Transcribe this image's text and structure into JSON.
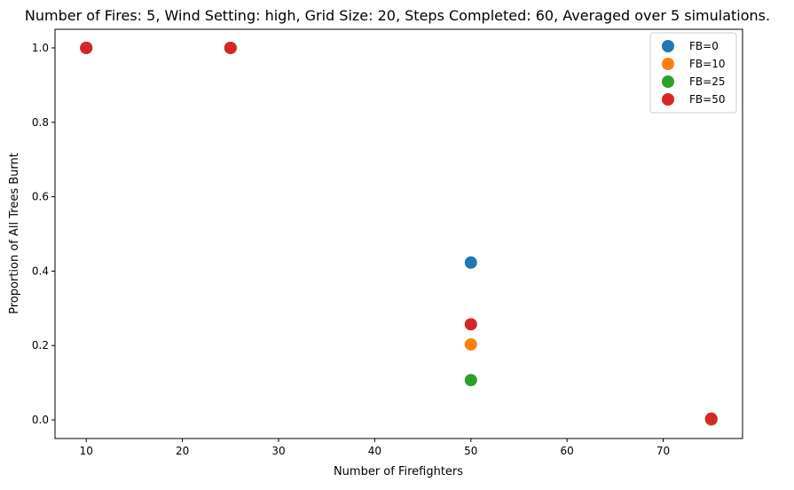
{
  "chart_data": {
    "type": "scatter",
    "title": "Number of Fires: 5, Wind Setting: high, Grid Size: 20, Steps Completed: 60, Averaged over 5 simulations.",
    "xlabel": "Number of Firefighters",
    "ylabel": "Proportion of All Trees Burnt",
    "xlim": [
      6.75,
      78.25
    ],
    "ylim": [
      -0.05,
      1.05
    ],
    "xticks": [
      10,
      20,
      30,
      40,
      50,
      60,
      70
    ],
    "yticks": [
      0.0,
      0.2,
      0.4,
      0.6,
      0.8,
      1.0
    ],
    "xtick_labels": [
      "10",
      "20",
      "30",
      "40",
      "50",
      "60",
      "70"
    ],
    "ytick_labels": [
      "0.0",
      "0.2",
      "0.4",
      "0.6",
      "0.8",
      "1.0"
    ],
    "grid": false,
    "legend_position": "top-right",
    "series": [
      {
        "name": "FB=0",
        "color": "#1f77b4",
        "x": [
          10,
          25,
          50,
          75
        ],
        "y": [
          1.0,
          1.0,
          0.423,
          0.003
        ]
      },
      {
        "name": "FB=10",
        "color": "#ff7f0e",
        "x": [
          10,
          25,
          50,
          75
        ],
        "y": [
          1.0,
          1.0,
          0.203,
          0.001
        ]
      },
      {
        "name": "FB=25",
        "color": "#2ca02c",
        "x": [
          10,
          25,
          50,
          75
        ],
        "y": [
          1.0,
          1.0,
          0.107,
          0.002
        ]
      },
      {
        "name": "FB=50",
        "color": "#d62728",
        "x": [
          10,
          25,
          50,
          75
        ],
        "y": [
          1.0,
          1.0,
          0.257,
          0.003
        ]
      }
    ]
  }
}
